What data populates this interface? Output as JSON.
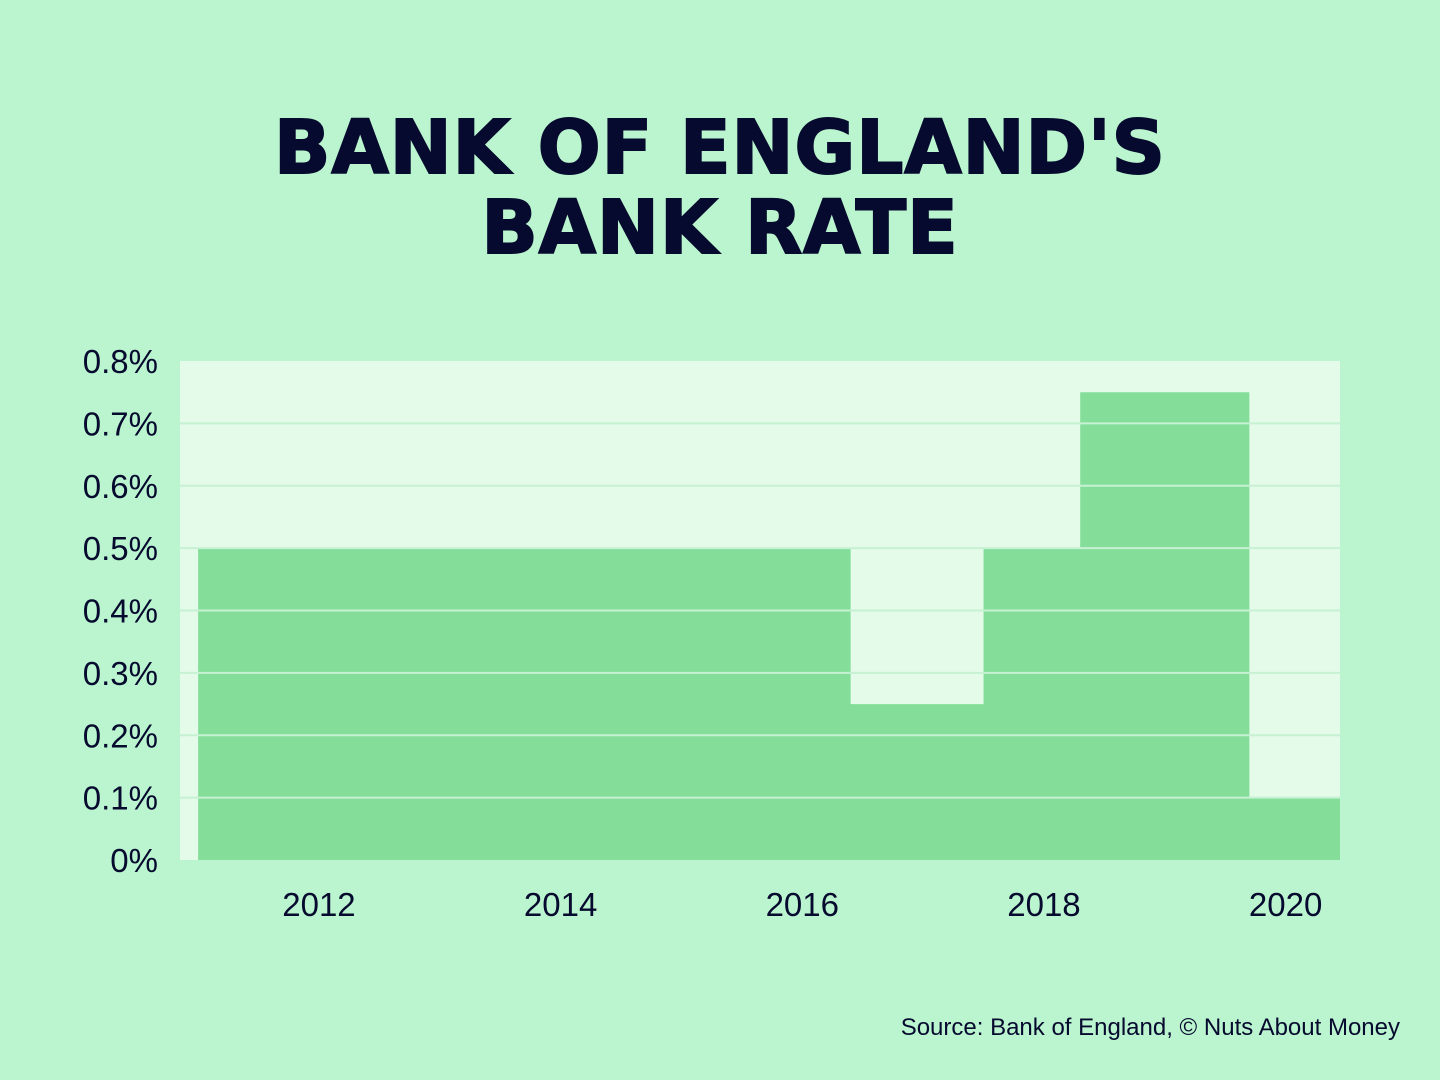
{
  "chart_data": {
    "type": "area",
    "title_lines": [
      "BANK OF ENGLAND'S",
      "BANK RATE"
    ],
    "x": [
      2011,
      2016.4,
      2016.4,
      2017.5,
      2017.5,
      2018.3,
      2018.3,
      2019.7,
      2019.7,
      2020.45
    ],
    "y": [
      0.5,
      0.5,
      0.25,
      0.25,
      0.5,
      0.5,
      0.75,
      0.75,
      0.1,
      0.1
    ],
    "xlim": [
      2010.85,
      2020.45
    ],
    "ylim": [
      0,
      0.8
    ],
    "x_ticks": [
      2012,
      2014,
      2016,
      2018,
      2020
    ],
    "x_tick_labels": [
      "2012",
      "2014",
      "2016",
      "2018",
      "2020"
    ],
    "y_ticks": [
      0,
      0.1,
      0.2,
      0.3,
      0.4,
      0.5,
      0.6,
      0.7,
      0.8
    ],
    "y_tick_labels": [
      "0%",
      "0.1%",
      "0.2%",
      "0.3%",
      "0.4%",
      "0.5%",
      "0.6%",
      "0.7%",
      "0.8%"
    ],
    "xlabel": "",
    "ylabel": "",
    "grid": true,
    "legend": "none",
    "colors": {
      "background": "#bbf5cf",
      "plot_background": "#e3fbe8",
      "area_fill": "#84de9a",
      "text": "#060a2e",
      "gridline": "#c6f1d2"
    },
    "source": "Source: Bank of England, © Nuts About Money"
  }
}
